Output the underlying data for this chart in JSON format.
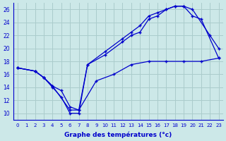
{
  "title": "",
  "xlabel": "Graphe des températures (°c)",
  "ylabel": "",
  "bg_color": "#cce8e8",
  "line_color": "#0000cc",
  "grid_color": "#aacccc",
  "xlim": [
    -0.5,
    23.5
  ],
  "ylim": [
    9,
    27
  ],
  "xticks": [
    0,
    1,
    2,
    3,
    4,
    5,
    6,
    7,
    8,
    9,
    10,
    11,
    12,
    13,
    14,
    15,
    16,
    17,
    18,
    19,
    20,
    21,
    22,
    23
  ],
  "yticks": [
    10,
    12,
    14,
    16,
    18,
    20,
    22,
    24,
    26
  ],
  "series1_x": [
    0,
    2,
    3,
    4,
    5,
    6,
    7,
    8,
    10,
    12,
    13,
    14,
    15,
    16,
    17,
    18,
    19,
    20,
    22,
    23
  ],
  "series1_y": [
    17,
    16.5,
    15.5,
    14,
    12.5,
    10,
    10,
    17.5,
    19,
    21,
    22,
    22.5,
    24.5,
    25,
    26,
    26.5,
    26.5,
    26,
    22,
    20
  ],
  "series2_x": [
    0,
    2,
    3,
    4,
    6,
    7,
    8,
    10,
    12,
    13,
    14,
    15,
    16,
    17,
    18,
    19,
    20,
    21,
    23
  ],
  "series2_y": [
    17,
    16.5,
    15.5,
    14.2,
    10.5,
    10.5,
    17.5,
    19.5,
    21.5,
    22.5,
    23.5,
    25,
    25.5,
    26,
    26.5,
    26.5,
    25,
    24.5,
    18.5
  ],
  "series3_x": [
    0,
    2,
    3,
    4,
    5,
    6,
    7,
    9,
    11,
    13,
    15,
    17,
    19,
    21,
    23
  ],
  "series3_y": [
    17,
    16.5,
    15.5,
    14.2,
    13.5,
    11,
    10.5,
    15,
    16,
    17.5,
    18,
    18,
    18,
    18,
    18.5
  ]
}
